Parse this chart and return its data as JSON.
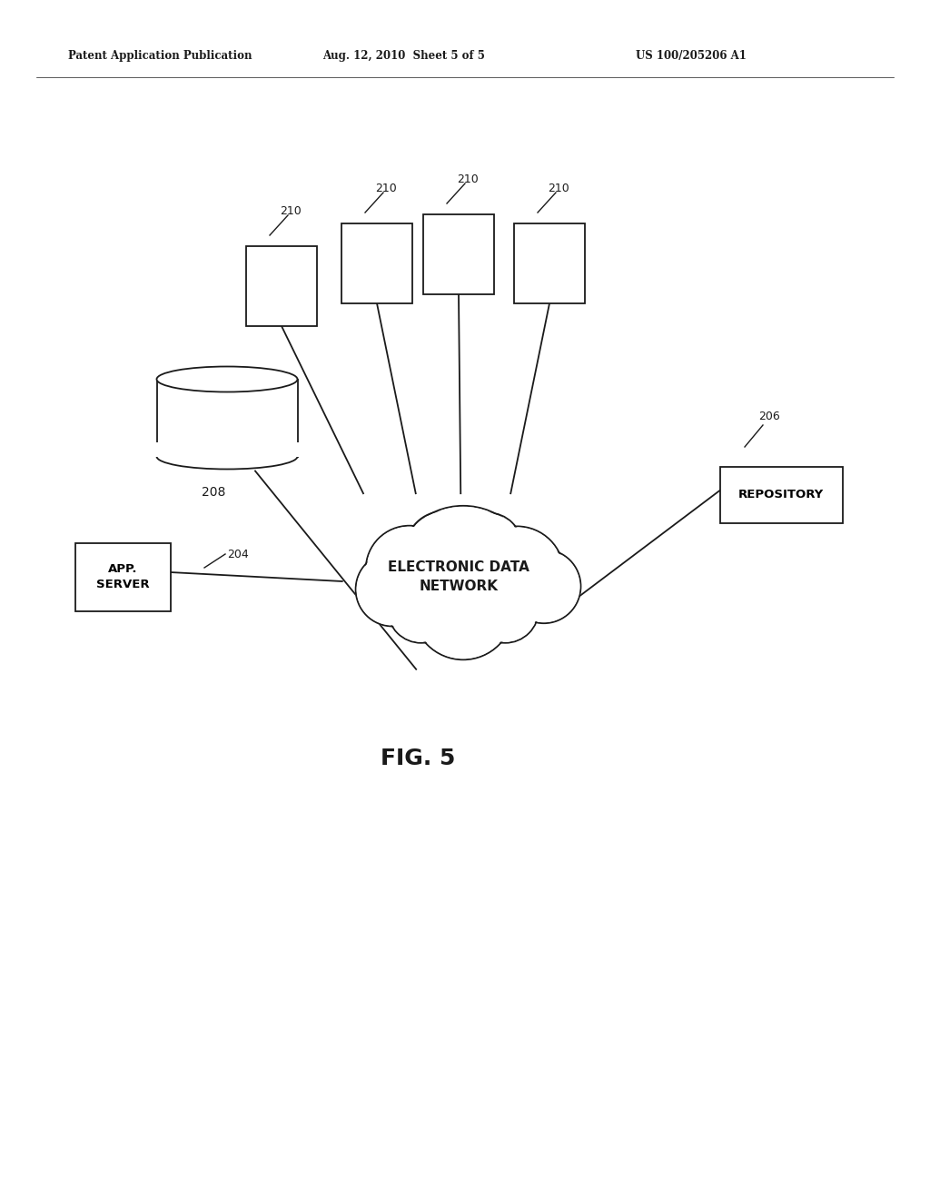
{
  "title_left": "Patent Application Publication",
  "title_mid": "Aug. 12, 2010  Sheet 5 of 5",
  "title_right": "US 100/205206 A1",
  "fig_label": "FIG. 5",
  "cloud_text": "ELECTRONIC DATA\nNETWORK",
  "app_server_label": "APP.\nSERVER",
  "app_server_ref": "204",
  "repository_label": "REPOSITORY",
  "repository_ref": "206",
  "db_ref": "208",
  "background_color": "#ffffff",
  "line_color": "#1a1a1a",
  "box_fill": "#ffffff",
  "text_color": "#1a1a1a"
}
